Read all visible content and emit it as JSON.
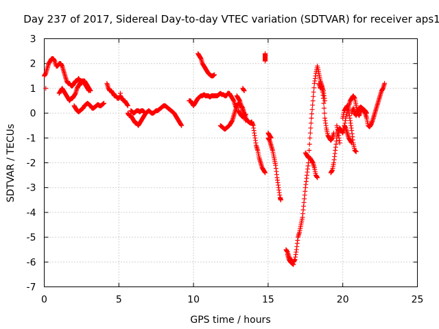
{
  "chart_data": {
    "type": "scatter",
    "title": "Day 237 of 2017, Sidereal Day-to-day VTEC variation (SDTVAR) for receiver aps1",
    "xlabel": "GPS time / hours",
    "ylabel": "SDTVAR / TECUs",
    "xlim": [
      0,
      25
    ],
    "ylim": [
      -7,
      3
    ],
    "xticks": [
      "0",
      "5",
      "10",
      "15",
      "20",
      "25"
    ],
    "yticks": [
      "3",
      "2",
      "1",
      "0",
      "-1",
      "-2",
      "-3",
      "-4",
      "-5",
      "-6",
      "-7"
    ],
    "grid": true,
    "marker": "+",
    "color": "#ff0000",
    "segments": [
      [
        [
          0.0,
          1.5
        ],
        [
          0.1,
          1.6
        ],
        [
          0.2,
          1.8
        ],
        [
          0.3,
          2.0
        ],
        [
          0.4,
          2.1
        ],
        [
          0.5,
          2.2
        ],
        [
          0.6,
          2.2
        ],
        [
          0.7,
          2.1
        ],
        [
          0.8,
          1.9
        ],
        [
          0.9,
          1.9
        ],
        [
          1.0,
          2.0
        ],
        [
          1.1,
          2.0
        ],
        [
          1.2,
          1.9
        ],
        [
          1.3,
          1.7
        ],
        [
          1.4,
          1.5
        ],
        [
          1.5,
          1.3
        ],
        [
          1.6,
          1.2
        ],
        [
          1.7,
          1.2
        ],
        [
          1.8,
          1.1
        ],
        [
          1.9,
          1.1
        ],
        [
          2.0,
          1.2
        ],
        [
          2.1,
          1.3
        ],
        [
          2.2,
          1.3
        ],
        [
          2.3,
          1.4
        ],
        [
          2.4,
          1.3
        ],
        [
          2.5,
          1.2
        ],
        [
          2.6,
          1.3
        ],
        [
          2.7,
          1.3
        ],
        [
          2.8,
          1.2
        ],
        [
          2.9,
          1.1
        ],
        [
          3.0,
          1.0
        ],
        [
          3.1,
          0.9
        ]
      ],
      [
        [
          0.1,
          1.0
        ]
      ],
      [
        [
          1.0,
          0.8
        ],
        [
          1.1,
          0.9
        ],
        [
          1.2,
          1.0
        ],
        [
          1.3,
          0.9
        ],
        [
          1.4,
          0.8
        ],
        [
          1.5,
          0.7
        ],
        [
          1.6,
          0.6
        ],
        [
          1.7,
          0.5
        ],
        [
          1.8,
          0.6
        ],
        [
          1.9,
          0.6
        ],
        [
          2.0,
          0.7
        ],
        [
          2.1,
          0.8
        ],
        [
          2.2,
          1.0
        ],
        [
          2.3,
          1.1
        ],
        [
          2.4,
          1.2
        ],
        [
          2.5,
          1.3
        ],
        [
          2.6,
          1.3
        ],
        [
          2.7,
          1.2
        ],
        [
          2.8,
          1.1
        ],
        [
          2.9,
          1.0
        ],
        [
          3.0,
          0.9
        ]
      ],
      [
        [
          2.0,
          0.3
        ],
        [
          2.1,
          0.2
        ],
        [
          2.2,
          0.1
        ],
        [
          2.3,
          0.05
        ],
        [
          2.4,
          0.1
        ],
        [
          2.5,
          0.15
        ],
        [
          2.6,
          0.2
        ],
        [
          2.7,
          0.3
        ],
        [
          2.8,
          0.35
        ],
        [
          2.9,
          0.4
        ],
        [
          3.0,
          0.35
        ],
        [
          3.1,
          0.3
        ],
        [
          3.2,
          0.2
        ],
        [
          3.3,
          0.2
        ],
        [
          3.4,
          0.25
        ],
        [
          3.5,
          0.3
        ],
        [
          3.6,
          0.35
        ],
        [
          3.7,
          0.3
        ],
        [
          3.8,
          0.3
        ],
        [
          3.9,
          0.35
        ],
        [
          4.0,
          0.4
        ]
      ],
      [
        [
          4.2,
          1.2
        ],
        [
          4.3,
          1.0
        ],
        [
          4.4,
          0.9
        ],
        [
          4.5,
          0.9
        ],
        [
          4.6,
          0.8
        ],
        [
          4.7,
          0.7
        ],
        [
          4.8,
          0.7
        ],
        [
          4.9,
          0.6
        ],
        [
          5.0,
          0.6
        ],
        [
          5.1,
          0.7
        ],
        [
          5.2,
          0.6
        ],
        [
          5.3,
          0.5
        ],
        [
          5.4,
          0.5
        ],
        [
          5.5,
          0.4
        ],
        [
          5.6,
          0.3
        ]
      ],
      [
        [
          5.1,
          0.8
        ]
      ],
      [
        [
          5.6,
          0.0
        ],
        [
          5.7,
          -0.1
        ],
        [
          5.8,
          -0.1
        ],
        [
          5.9,
          -0.2
        ],
        [
          6.0,
          -0.3
        ],
        [
          6.1,
          -0.4
        ],
        [
          6.2,
          -0.4
        ],
        [
          6.3,
          -0.5
        ],
        [
          6.4,
          -0.4
        ],
        [
          6.5,
          -0.3
        ],
        [
          6.6,
          -0.2
        ],
        [
          6.7,
          -0.1
        ],
        [
          6.8,
          0.0
        ],
        [
          6.9,
          0.05
        ],
        [
          7.0,
          0.1
        ],
        [
          7.1,
          0.05
        ],
        [
          7.2,
          0.0
        ],
        [
          7.3,
          0.0
        ],
        [
          7.4,
          0.05
        ],
        [
          7.5,
          0.1
        ],
        [
          7.6,
          0.1
        ],
        [
          7.7,
          0.15
        ],
        [
          7.8,
          0.2
        ],
        [
          7.9,
          0.25
        ],
        [
          8.0,
          0.3
        ],
        [
          8.1,
          0.3
        ],
        [
          8.2,
          0.25
        ],
        [
          8.3,
          0.2
        ],
        [
          8.4,
          0.15
        ],
        [
          8.5,
          0.1
        ],
        [
          8.6,
          0.05
        ],
        [
          8.7,
          0.0
        ],
        [
          8.8,
          -0.1
        ],
        [
          8.9,
          -0.2
        ],
        [
          9.0,
          -0.3
        ],
        [
          9.1,
          -0.4
        ],
        [
          9.2,
          -0.5
        ]
      ],
      [
        [
          5.8,
          0.1
        ],
        [
          5.9,
          0.05
        ],
        [
          6.0,
          0.0
        ],
        [
          6.1,
          0.05
        ],
        [
          6.2,
          0.1
        ],
        [
          6.3,
          0.1
        ],
        [
          6.4,
          0.05
        ],
        [
          6.5,
          0.1
        ],
        [
          6.6,
          0.1
        ],
        [
          6.7,
          0.05
        ]
      ],
      [
        [
          9.7,
          0.5
        ],
        [
          9.8,
          0.5
        ],
        [
          9.9,
          0.4
        ],
        [
          10.0,
          0.3
        ],
        [
          10.1,
          0.4
        ],
        [
          10.2,
          0.5
        ],
        [
          10.3,
          0.6
        ],
        [
          10.4,
          0.65
        ],
        [
          10.5,
          0.7
        ],
        [
          10.6,
          0.7
        ],
        [
          10.7,
          0.75
        ],
        [
          10.8,
          0.7
        ],
        [
          10.9,
          0.7
        ],
        [
          11.0,
          0.7
        ],
        [
          11.1,
          0.65
        ],
        [
          11.2,
          0.7
        ],
        [
          11.3,
          0.7
        ],
        [
          11.4,
          0.7
        ],
        [
          11.5,
          0.7
        ],
        [
          11.6,
          0.7
        ],
        [
          11.7,
          0.75
        ],
        [
          11.8,
          0.8
        ],
        [
          11.9,
          0.75
        ],
        [
          12.0,
          0.75
        ],
        [
          12.1,
          0.7
        ],
        [
          12.2,
          0.7
        ],
        [
          12.3,
          0.8
        ],
        [
          12.4,
          0.8
        ],
        [
          12.5,
          0.7
        ],
        [
          12.6,
          0.6
        ],
        [
          12.7,
          0.5
        ],
        [
          12.8,
          0.3
        ],
        [
          12.9,
          0.2
        ]
      ],
      [
        [
          10.3,
          2.4
        ],
        [
          10.4,
          2.3
        ],
        [
          10.5,
          2.2
        ],
        [
          10.6,
          2.0
        ],
        [
          10.7,
          1.9
        ],
        [
          10.8,
          1.8
        ],
        [
          10.9,
          1.7
        ],
        [
          11.0,
          1.6
        ],
        [
          11.1,
          1.55
        ],
        [
          11.2,
          1.5
        ],
        [
          11.3,
          1.5
        ],
        [
          11.4,
          1.55
        ]
      ],
      [
        [
          11.8,
          -0.5
        ],
        [
          11.9,
          -0.55
        ],
        [
          12.0,
          -0.6
        ],
        [
          12.1,
          -0.65
        ],
        [
          12.2,
          -0.6
        ],
        [
          12.3,
          -0.55
        ],
        [
          12.4,
          -0.5
        ],
        [
          12.5,
          -0.4
        ],
        [
          12.6,
          -0.3
        ],
        [
          12.7,
          -0.1
        ],
        [
          12.8,
          0.1
        ],
        [
          12.9,
          0.3
        ],
        [
          13.0,
          0.4
        ],
        [
          13.1,
          0.3
        ],
        [
          13.2,
          0.3
        ],
        [
          13.3,
          0.2
        ],
        [
          13.4,
          0.0
        ],
        [
          13.5,
          -0.2
        ],
        [
          13.6,
          -0.3
        ],
        [
          13.7,
          -0.35
        ],
        [
          13.8,
          -0.4
        ],
        [
          13.9,
          -0.35
        ],
        [
          14.0,
          -0.5
        ],
        [
          14.1,
          -0.9
        ],
        [
          14.2,
          -1.3
        ],
        [
          14.3,
          -1.5
        ],
        [
          14.4,
          -1.8
        ],
        [
          14.5,
          -2.0
        ],
        [
          14.6,
          -2.2
        ],
        [
          14.7,
          -2.3
        ],
        [
          14.8,
          -2.4
        ]
      ],
      [
        [
          12.9,
          0.7
        ],
        [
          13.0,
          0.6
        ],
        [
          13.1,
          0.5
        ],
        [
          13.2,
          0.3
        ],
        [
          13.3,
          0.1
        ],
        [
          13.4,
          -0.1
        ],
        [
          13.5,
          -0.3
        ]
      ],
      [
        [
          13.0,
          0.1
        ],
        [
          13.1,
          0.0
        ],
        [
          13.2,
          -0.1
        ],
        [
          13.3,
          -0.15
        ],
        [
          13.4,
          -0.1
        ],
        [
          13.5,
          -0.05
        ]
      ],
      [
        [
          13.3,
          1.0
        ],
        [
          13.4,
          0.9
        ]
      ],
      [
        [
          14.8,
          2.4
        ],
        [
          14.8,
          2.3
        ],
        [
          14.8,
          2.2
        ],
        [
          14.8,
          2.1
        ]
      ],
      [
        [
          15.0,
          -1.0
        ],
        [
          15.1,
          -1.1
        ],
        [
          15.2,
          -1.3
        ],
        [
          15.3,
          -1.5
        ],
        [
          15.4,
          -1.8
        ],
        [
          15.5,
          -2.1
        ],
        [
          15.6,
          -2.6
        ],
        [
          15.7,
          -3.0
        ],
        [
          15.8,
          -3.4
        ],
        [
          15.85,
          -3.5
        ]
      ],
      [
        [
          15.0,
          -0.8
        ],
        [
          15.1,
          -0.9
        ],
        [
          15.2,
          -1.0
        ]
      ],
      [
        [
          16.2,
          -5.5
        ],
        [
          16.3,
          -5.6
        ],
        [
          16.4,
          -5.8
        ],
        [
          16.5,
          -5.9
        ],
        [
          16.6,
          -5.95
        ],
        [
          16.7,
          -6.0
        ],
        [
          16.8,
          -5.9
        ],
        [
          16.9,
          -5.5
        ],
        [
          17.0,
          -5.0
        ],
        [
          17.1,
          -4.8
        ],
        [
          17.2,
          -4.5
        ],
        [
          17.3,
          -4.2
        ],
        [
          17.4,
          -3.6
        ],
        [
          17.5,
          -3.0
        ],
        [
          17.6,
          -2.5
        ],
        [
          17.7,
          -2.0
        ],
        [
          17.8,
          -1.0
        ],
        [
          17.9,
          -0.2
        ],
        [
          18.0,
          0.5
        ],
        [
          18.1,
          1.2
        ],
        [
          18.2,
          1.6
        ],
        [
          18.3,
          1.9
        ],
        [
          18.4,
          1.6
        ],
        [
          18.5,
          1.3
        ],
        [
          18.6,
          1.1
        ],
        [
          18.7,
          0.6
        ],
        [
          18.8,
          -0.2
        ],
        [
          18.9,
          -0.6
        ],
        [
          19.0,
          -0.9
        ],
        [
          19.1,
          -1.0
        ],
        [
          19.2,
          -1.1
        ],
        [
          19.3,
          -1.0
        ],
        [
          19.4,
          -0.8
        ]
      ],
      [
        [
          16.3,
          -5.7
        ],
        [
          16.4,
          -5.9
        ],
        [
          16.5,
          -6.0
        ],
        [
          16.6,
          -6.05
        ],
        [
          16.7,
          -6.1
        ]
      ],
      [
        [
          17.5,
          -1.6
        ],
        [
          17.6,
          -1.7
        ],
        [
          17.7,
          -1.8
        ],
        [
          17.8,
          -1.8
        ],
        [
          17.9,
          -1.9
        ],
        [
          18.0,
          -2.0
        ],
        [
          18.1,
          -2.2
        ],
        [
          18.2,
          -2.5
        ],
        [
          18.3,
          -2.6
        ]
      ],
      [
        [
          18.4,
          1.2
        ],
        [
          18.5,
          1.0
        ],
        [
          18.6,
          1.1
        ],
        [
          18.7,
          0.9
        ],
        [
          18.8,
          0.5
        ]
      ],
      [
        [
          19.2,
          -2.4
        ],
        [
          19.3,
          -2.3
        ],
        [
          19.4,
          -2.0
        ],
        [
          19.5,
          -1.5
        ],
        [
          19.6,
          -1.0
        ],
        [
          19.7,
          -0.7
        ],
        [
          19.8,
          -0.6
        ],
        [
          19.9,
          -0.7
        ],
        [
          20.0,
          -0.8
        ],
        [
          20.1,
          -0.6
        ],
        [
          20.2,
          -0.2
        ],
        [
          20.3,
          0.1
        ],
        [
          20.4,
          0.3
        ],
        [
          20.5,
          0.5
        ],
        [
          20.6,
          0.6
        ],
        [
          20.7,
          0.7
        ],
        [
          20.8,
          0.6
        ],
        [
          20.9,
          0.3
        ],
        [
          21.0,
          0.0
        ],
        [
          21.1,
          -0.1
        ],
        [
          21.2,
          0.1
        ],
        [
          21.3,
          0.15
        ],
        [
          21.4,
          0.1
        ],
        [
          21.5,
          0.0
        ],
        [
          21.6,
          -0.2
        ],
        [
          21.7,
          -0.5
        ],
        [
          21.8,
          -0.55
        ],
        [
          21.9,
          -0.45
        ],
        [
          22.0,
          -0.3
        ],
        [
          22.1,
          -0.1
        ],
        [
          22.2,
          0.1
        ],
        [
          22.3,
          0.3
        ],
        [
          22.4,
          0.5
        ],
        [
          22.5,
          0.7
        ],
        [
          22.6,
          0.9
        ],
        [
          22.7,
          1.0
        ],
        [
          22.8,
          1.2
        ]
      ],
      [
        [
          20.0,
          -0.2
        ],
        [
          20.1,
          0.1
        ],
        [
          20.2,
          0.2
        ],
        [
          20.3,
          0.3
        ],
        [
          20.4,
          0.1
        ],
        [
          20.5,
          -0.3
        ],
        [
          20.6,
          -0.7
        ],
        [
          20.7,
          -1.2
        ],
        [
          20.8,
          -1.5
        ],
        [
          20.9,
          -1.55
        ]
      ],
      [
        [
          20.1,
          -0.5
        ],
        [
          20.2,
          -0.6
        ],
        [
          20.3,
          -0.8
        ],
        [
          20.4,
          -1.0
        ],
        [
          20.5,
          -1.1
        ],
        [
          20.6,
          -1.2
        ]
      ],
      [
        [
          20.6,
          0.0
        ],
        [
          20.7,
          0.2
        ],
        [
          20.8,
          0.0
        ],
        [
          20.9,
          -0.1
        ],
        [
          21.0,
          0.1
        ],
        [
          21.1,
          0.2
        ],
        [
          21.2,
          0.25
        ],
        [
          21.3,
          0.2
        ],
        [
          21.4,
          0.15
        ],
        [
          21.5,
          0.1
        ],
        [
          21.6,
          0.0
        ]
      ],
      [
        [
          19.6,
          -0.5
        ],
        [
          19.7,
          -0.8
        ],
        [
          19.8,
          -1.2
        ]
      ]
    ]
  }
}
